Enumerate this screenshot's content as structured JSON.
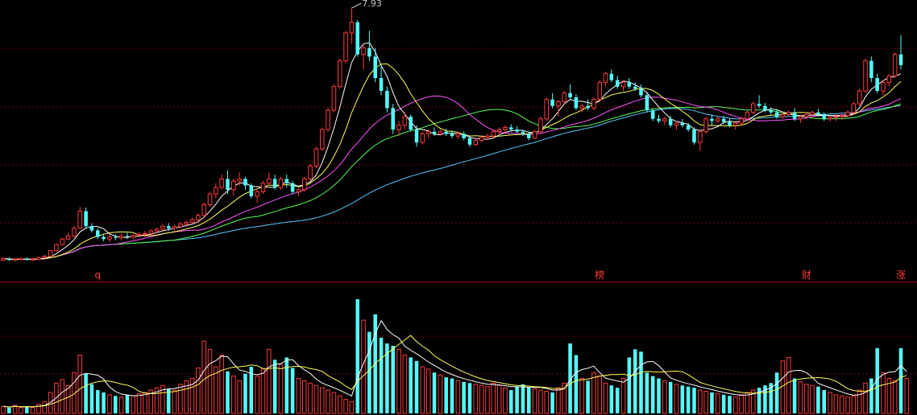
{
  "chart_data": [
    {
      "type": "candlestick",
      "panel": "price",
      "max_label": "7.93",
      "markers": [
        {
          "index": 16,
          "text": "q"
        },
        {
          "index": 101,
          "text": "榜"
        },
        {
          "index": 136,
          "text": "财"
        },
        {
          "index": 152,
          "text": "涨"
        }
      ],
      "candles": [
        {
          "o": 2.06,
          "h": 2.12,
          "l": 2.04,
          "c": 2.1
        },
        {
          "o": 2.08,
          "h": 2.13,
          "l": 2.05,
          "c": 2.06
        },
        {
          "o": 2.06,
          "h": 2.1,
          "l": 2.03,
          "c": 2.08
        },
        {
          "o": 2.08,
          "h": 2.12,
          "l": 2.06,
          "c": 2.09
        },
        {
          "o": 2.09,
          "h": 2.13,
          "l": 2.05,
          "c": 2.07
        },
        {
          "o": 2.07,
          "h": 2.1,
          "l": 2.04,
          "c": 2.08
        },
        {
          "o": 2.08,
          "h": 2.14,
          "l": 2.06,
          "c": 2.12
        },
        {
          "o": 2.12,
          "h": 2.18,
          "l": 2.1,
          "c": 2.15
        },
        {
          "o": 2.15,
          "h": 2.3,
          "l": 2.13,
          "c": 2.28
        },
        {
          "o": 2.28,
          "h": 2.45,
          "l": 2.26,
          "c": 2.42
        },
        {
          "o": 2.42,
          "h": 2.58,
          "l": 2.4,
          "c": 2.55
        },
        {
          "o": 2.55,
          "h": 2.7,
          "l": 2.52,
          "c": 2.62
        },
        {
          "o": 2.62,
          "h": 2.85,
          "l": 2.6,
          "c": 2.8
        },
        {
          "o": 2.8,
          "h": 3.3,
          "l": 2.78,
          "c": 3.2
        },
        {
          "o": 3.2,
          "h": 3.28,
          "l": 2.8,
          "c": 2.85
        },
        {
          "o": 2.85,
          "h": 2.92,
          "l": 2.7,
          "c": 2.75
        },
        {
          "o": 2.75,
          "h": 2.8,
          "l": 2.55,
          "c": 2.6
        },
        {
          "o": 2.6,
          "h": 2.68,
          "l": 2.5,
          "c": 2.55
        },
        {
          "o": 2.55,
          "h": 2.65,
          "l": 2.48,
          "c": 2.6
        },
        {
          "o": 2.6,
          "h": 2.66,
          "l": 2.52,
          "c": 2.58
        },
        {
          "o": 2.58,
          "h": 2.68,
          "l": 2.52,
          "c": 2.62
        },
        {
          "o": 2.62,
          "h": 2.7,
          "l": 2.55,
          "c": 2.6
        },
        {
          "o": 2.6,
          "h": 2.66,
          "l": 2.54,
          "c": 2.64
        },
        {
          "o": 2.64,
          "h": 2.72,
          "l": 2.58,
          "c": 2.66
        },
        {
          "o": 2.66,
          "h": 2.74,
          "l": 2.6,
          "c": 2.68
        },
        {
          "o": 2.68,
          "h": 2.78,
          "l": 2.64,
          "c": 2.74
        },
        {
          "o": 2.74,
          "h": 2.82,
          "l": 2.68,
          "c": 2.78
        },
        {
          "o": 2.78,
          "h": 2.9,
          "l": 2.72,
          "c": 2.85
        },
        {
          "o": 2.85,
          "h": 2.92,
          "l": 2.74,
          "c": 2.8
        },
        {
          "o": 2.8,
          "h": 2.88,
          "l": 2.75,
          "c": 2.84
        },
        {
          "o": 2.84,
          "h": 2.95,
          "l": 2.8,
          "c": 2.9
        },
        {
          "o": 2.9,
          "h": 2.98,
          "l": 2.84,
          "c": 2.94
        },
        {
          "o": 2.94,
          "h": 3.05,
          "l": 2.9,
          "c": 3.0
        },
        {
          "o": 3.0,
          "h": 3.15,
          "l": 2.96,
          "c": 3.1
        },
        {
          "o": 3.1,
          "h": 3.4,
          "l": 3.05,
          "c": 3.35
        },
        {
          "o": 3.35,
          "h": 3.65,
          "l": 3.3,
          "c": 3.6
        },
        {
          "o": 3.6,
          "h": 3.85,
          "l": 3.5,
          "c": 3.75
        },
        {
          "o": 3.75,
          "h": 4.05,
          "l": 3.7,
          "c": 3.95
        },
        {
          "o": 3.95,
          "h": 4.15,
          "l": 3.6,
          "c": 3.7
        },
        {
          "o": 3.7,
          "h": 3.95,
          "l": 3.55,
          "c": 3.9
        },
        {
          "o": 3.9,
          "h": 4.1,
          "l": 3.8,
          "c": 3.95
        },
        {
          "o": 3.95,
          "h": 4.0,
          "l": 3.7,
          "c": 3.8
        },
        {
          "o": 3.8,
          "h": 3.85,
          "l": 3.5,
          "c": 3.55
        },
        {
          "o": 3.55,
          "h": 3.7,
          "l": 3.4,
          "c": 3.65
        },
        {
          "o": 3.65,
          "h": 3.9,
          "l": 3.6,
          "c": 3.85
        },
        {
          "o": 3.85,
          "h": 4.1,
          "l": 3.8,
          "c": 3.95
        },
        {
          "o": 3.95,
          "h": 4.05,
          "l": 3.7,
          "c": 3.75
        },
        {
          "o": 3.75,
          "h": 4.0,
          "l": 3.7,
          "c": 3.95
        },
        {
          "o": 3.95,
          "h": 4.05,
          "l": 3.75,
          "c": 3.85
        },
        {
          "o": 3.85,
          "h": 3.9,
          "l": 3.6,
          "c": 3.65
        },
        {
          "o": 3.65,
          "h": 3.75,
          "l": 3.55,
          "c": 3.7
        },
        {
          "o": 3.7,
          "h": 4.0,
          "l": 3.65,
          "c": 3.95
        },
        {
          "o": 3.95,
          "h": 4.3,
          "l": 3.9,
          "c": 4.25
        },
        {
          "o": 4.25,
          "h": 4.7,
          "l": 4.2,
          "c": 4.65
        },
        {
          "o": 4.65,
          "h": 5.15,
          "l": 4.6,
          "c": 5.1
        },
        {
          "o": 5.1,
          "h": 5.6,
          "l": 5.05,
          "c": 5.55
        },
        {
          "o": 5.55,
          "h": 6.15,
          "l": 5.5,
          "c": 6.1
        },
        {
          "o": 6.1,
          "h": 6.75,
          "l": 6.05,
          "c": 6.7
        },
        {
          "o": 6.7,
          "h": 7.4,
          "l": 6.65,
          "c": 7.35
        },
        {
          "o": 7.35,
          "h": 7.93,
          "l": 7.1,
          "c": 7.6
        },
        {
          "o": 7.6,
          "h": 7.65,
          "l": 6.8,
          "c": 6.85
        },
        {
          "o": 6.85,
          "h": 7.1,
          "l": 6.5,
          "c": 7.0
        },
        {
          "o": 7.0,
          "h": 7.4,
          "l": 6.7,
          "c": 6.8
        },
        {
          "o": 6.8,
          "h": 7.0,
          "l": 6.2,
          "c": 6.3
        },
        {
          "o": 6.3,
          "h": 6.6,
          "l": 5.9,
          "c": 6.0
        },
        {
          "o": 6.0,
          "h": 6.1,
          "l": 5.5,
          "c": 5.6
        },
        {
          "o": 5.6,
          "h": 5.7,
          "l": 5.0,
          "c": 5.1
        },
        {
          "o": 5.1,
          "h": 5.3,
          "l": 4.95,
          "c": 5.2
        },
        {
          "o": 5.2,
          "h": 5.5,
          "l": 5.1,
          "c": 5.4
        },
        {
          "o": 5.4,
          "h": 5.45,
          "l": 5.05,
          "c": 5.1
        },
        {
          "o": 5.1,
          "h": 5.2,
          "l": 4.7,
          "c": 4.8
        },
        {
          "o": 4.8,
          "h": 5.05,
          "l": 4.75,
          "c": 5.0
        },
        {
          "o": 5.0,
          "h": 5.1,
          "l": 4.9,
          "c": 5.05
        },
        {
          "o": 5.05,
          "h": 5.15,
          "l": 4.95,
          "c": 5.0
        },
        {
          "o": 5.0,
          "h": 5.1,
          "l": 4.95,
          "c": 5.05
        },
        {
          "o": 5.05,
          "h": 5.12,
          "l": 4.95,
          "c": 5.0
        },
        {
          "o": 5.0,
          "h": 5.08,
          "l": 4.9,
          "c": 4.95
        },
        {
          "o": 4.95,
          "h": 5.05,
          "l": 4.88,
          "c": 5.0
        },
        {
          "o": 5.0,
          "h": 5.06,
          "l": 4.85,
          "c": 4.9
        },
        {
          "o": 4.9,
          "h": 4.95,
          "l": 4.7,
          "c": 4.75
        },
        {
          "o": 4.75,
          "h": 4.9,
          "l": 4.72,
          "c": 4.85
        },
        {
          "o": 4.85,
          "h": 4.95,
          "l": 4.8,
          "c": 4.92
        },
        {
          "o": 4.92,
          "h": 5.0,
          "l": 4.85,
          "c": 4.95
        },
        {
          "o": 4.95,
          "h": 5.1,
          "l": 4.9,
          "c": 5.05
        },
        {
          "o": 5.05,
          "h": 5.15,
          "l": 5.0,
          "c": 5.1
        },
        {
          "o": 5.1,
          "h": 5.2,
          "l": 5.02,
          "c": 5.15
        },
        {
          "o": 5.15,
          "h": 5.22,
          "l": 5.05,
          "c": 5.1
        },
        {
          "o": 5.1,
          "h": 5.18,
          "l": 5.02,
          "c": 5.05
        },
        {
          "o": 5.05,
          "h": 5.1,
          "l": 4.95,
          "c": 5.0
        },
        {
          "o": 5.0,
          "h": 5.05,
          "l": 4.85,
          "c": 4.9
        },
        {
          "o": 4.9,
          "h": 5.1,
          "l": 4.88,
          "c": 5.05
        },
        {
          "o": 5.05,
          "h": 5.4,
          "l": 5.0,
          "c": 5.35
        },
        {
          "o": 5.35,
          "h": 5.85,
          "l": 5.3,
          "c": 5.8
        },
        {
          "o": 5.8,
          "h": 5.95,
          "l": 5.6,
          "c": 5.65
        },
        {
          "o": 5.65,
          "h": 5.8,
          "l": 5.4,
          "c": 5.75
        },
        {
          "o": 5.75,
          "h": 6.0,
          "l": 5.7,
          "c": 5.95
        },
        {
          "o": 5.95,
          "h": 6.15,
          "l": 5.8,
          "c": 5.85
        },
        {
          "o": 5.85,
          "h": 5.92,
          "l": 5.55,
          "c": 5.6
        },
        {
          "o": 5.6,
          "h": 5.7,
          "l": 5.5,
          "c": 5.65
        },
        {
          "o": 5.65,
          "h": 5.8,
          "l": 5.55,
          "c": 5.6
        },
        {
          "o": 5.6,
          "h": 5.85,
          "l": 5.55,
          "c": 5.8
        },
        {
          "o": 5.8,
          "h": 6.25,
          "l": 5.75,
          "c": 6.2
        },
        {
          "o": 6.2,
          "h": 6.45,
          "l": 6.1,
          "c": 6.4
        },
        {
          "o": 6.4,
          "h": 6.5,
          "l": 6.2,
          "c": 6.25
        },
        {
          "o": 6.25,
          "h": 6.35,
          "l": 6.05,
          "c": 6.1
        },
        {
          "o": 6.1,
          "h": 6.25,
          "l": 6.0,
          "c": 6.2
        },
        {
          "o": 6.2,
          "h": 6.3,
          "l": 6.05,
          "c": 6.1
        },
        {
          "o": 6.1,
          "h": 6.2,
          "l": 6.0,
          "c": 6.05
        },
        {
          "o": 6.05,
          "h": 6.15,
          "l": 5.85,
          "c": 5.9
        },
        {
          "o": 5.9,
          "h": 5.95,
          "l": 5.5,
          "c": 5.55
        },
        {
          "o": 5.55,
          "h": 5.6,
          "l": 5.3,
          "c": 5.35
        },
        {
          "o": 5.35,
          "h": 5.45,
          "l": 5.25,
          "c": 5.3
        },
        {
          "o": 5.3,
          "h": 5.4,
          "l": 5.2,
          "c": 5.35
        },
        {
          "o": 5.35,
          "h": 5.42,
          "l": 5.15,
          "c": 5.2
        },
        {
          "o": 5.2,
          "h": 5.3,
          "l": 5.1,
          "c": 5.25
        },
        {
          "o": 5.25,
          "h": 5.35,
          "l": 5.15,
          "c": 5.2
        },
        {
          "o": 5.2,
          "h": 5.25,
          "l": 5.05,
          "c": 5.1
        },
        {
          "o": 5.1,
          "h": 5.15,
          "l": 4.75,
          "c": 4.8
        },
        {
          "o": 4.8,
          "h": 5.1,
          "l": 4.6,
          "c": 5.05
        },
        {
          "o": 5.05,
          "h": 5.4,
          "l": 5.0,
          "c": 5.35
        },
        {
          "o": 5.35,
          "h": 5.45,
          "l": 5.2,
          "c": 5.3
        },
        {
          "o": 5.3,
          "h": 5.4,
          "l": 5.25,
          "c": 5.35
        },
        {
          "o": 5.35,
          "h": 5.42,
          "l": 5.22,
          "c": 5.28
        },
        {
          "o": 5.28,
          "h": 5.35,
          "l": 5.15,
          "c": 5.2
        },
        {
          "o": 5.2,
          "h": 5.3,
          "l": 5.1,
          "c": 5.25
        },
        {
          "o": 5.25,
          "h": 5.4,
          "l": 5.2,
          "c": 5.35
        },
        {
          "o": 5.35,
          "h": 5.55,
          "l": 5.3,
          "c": 5.5
        },
        {
          "o": 5.5,
          "h": 5.75,
          "l": 5.45,
          "c": 5.7
        },
        {
          "o": 5.7,
          "h": 5.9,
          "l": 5.6,
          "c": 5.65
        },
        {
          "o": 5.65,
          "h": 5.72,
          "l": 5.5,
          "c": 5.55
        },
        {
          "o": 5.55,
          "h": 5.62,
          "l": 5.45,
          "c": 5.5
        },
        {
          "o": 5.5,
          "h": 5.58,
          "l": 5.35,
          "c": 5.4
        },
        {
          "o": 5.4,
          "h": 5.5,
          "l": 5.35,
          "c": 5.45
        },
        {
          "o": 5.45,
          "h": 5.55,
          "l": 5.4,
          "c": 5.5
        },
        {
          "o": 5.5,
          "h": 5.6,
          "l": 5.3,
          "c": 5.35
        },
        {
          "o": 5.35,
          "h": 5.45,
          "l": 5.25,
          "c": 5.4
        },
        {
          "o": 5.4,
          "h": 5.5,
          "l": 5.35,
          "c": 5.45
        },
        {
          "o": 5.45,
          "h": 5.55,
          "l": 5.38,
          "c": 5.5
        },
        {
          "o": 5.5,
          "h": 5.58,
          "l": 5.4,
          "c": 5.45
        },
        {
          "o": 5.45,
          "h": 5.5,
          "l": 5.3,
          "c": 5.35
        },
        {
          "o": 5.35,
          "h": 5.42,
          "l": 5.28,
          "c": 5.38
        },
        {
          "o": 5.38,
          "h": 5.45,
          "l": 5.3,
          "c": 5.4
        },
        {
          "o": 5.4,
          "h": 5.48,
          "l": 5.32,
          "c": 5.42
        },
        {
          "o": 5.42,
          "h": 5.55,
          "l": 5.38,
          "c": 5.5
        },
        {
          "o": 5.5,
          "h": 5.75,
          "l": 5.45,
          "c": 5.7
        },
        {
          "o": 5.7,
          "h": 6.05,
          "l": 5.65,
          "c": 6.0
        },
        {
          "o": 6.0,
          "h": 6.75,
          "l": 5.95,
          "c": 6.7
        },
        {
          "o": 6.7,
          "h": 6.8,
          "l": 6.2,
          "c": 6.3
        },
        {
          "o": 6.3,
          "h": 6.4,
          "l": 5.95,
          "c": 6.0
        },
        {
          "o": 6.0,
          "h": 6.25,
          "l": 5.9,
          "c": 6.2
        },
        {
          "o": 6.2,
          "h": 6.4,
          "l": 6.1,
          "c": 6.35
        },
        {
          "o": 6.35,
          "h": 6.9,
          "l": 6.3,
          "c": 6.85
        },
        {
          "o": 6.85,
          "h": 7.3,
          "l": 6.5,
          "c": 6.6
        }
      ]
    },
    {
      "type": "bar",
      "panel": "volume",
      "values": [
        0.6,
        0.5,
        0.7,
        0.5,
        0.6,
        0.5,
        0.8,
        1.0,
        1.8,
        2.6,
        2.9,
        2.4,
        3.5,
        5.0,
        3.4,
        2.5,
        2.0,
        1.8,
        1.6,
        1.5,
        1.4,
        1.6,
        1.5,
        1.7,
        1.8,
        2.0,
        2.2,
        2.4,
        2.1,
        2.0,
        2.5,
        2.8,
        3.0,
        3.9,
        6.2,
        5.5,
        4.0,
        5.0,
        3.6,
        3.2,
        2.8,
        3.4,
        4.0,
        3.2,
        3.8,
        5.5,
        4.6,
        4.2,
        4.8,
        3.9,
        3.0,
        2.8,
        2.6,
        2.4,
        2.2,
        2.0,
        1.8,
        1.5,
        1.2,
        1.0,
        9.8,
        8.0,
        7.0,
        8.5,
        6.5,
        6.0,
        5.8,
        5.5,
        5.0,
        4.8,
        4.5,
        4.0,
        3.8,
        3.5,
        3.3,
        3.1,
        3.0,
        2.8,
        2.7,
        2.6,
        2.5,
        2.4,
        2.3,
        2.6,
        2.4,
        2.2,
        2.0,
        2.3,
        2.5,
        2.2,
        2.1,
        2.0,
        1.9,
        1.8,
        2.2,
        2.6,
        6.0,
        5.0,
        3.0,
        2.8,
        3.5,
        3.2,
        2.6,
        2.4,
        2.2,
        3.0,
        4.8,
        5.5,
        5.3,
        3.5,
        3.2,
        3.0,
        2.8,
        2.7,
        2.5,
        2.4,
        2.3,
        2.2,
        2.0,
        1.9,
        1.8,
        1.7,
        1.6,
        1.5,
        1.4,
        1.6,
        1.8,
        2.0,
        2.2,
        2.4,
        2.6,
        3.5,
        4.5,
        4.8,
        3.0,
        2.7,
        2.5,
        2.4,
        2.3,
        2.0,
        1.8,
        1.6,
        1.5,
        1.4,
        1.5,
        2.0,
        2.6,
        3.0,
        5.6,
        3.5,
        3.0,
        2.8,
        5.6,
        3.0
      ]
    }
  ],
  "colors": {
    "up": "#ff3b3b",
    "down": "#54fcfc",
    "ma5": "#ffffff",
    "ma10": "#ffff54",
    "ma20": "#ff54ff",
    "ma30": "#54ff54",
    "ma60": "#54c8ff",
    "grid": "#800000",
    "divider": "#a00000"
  }
}
